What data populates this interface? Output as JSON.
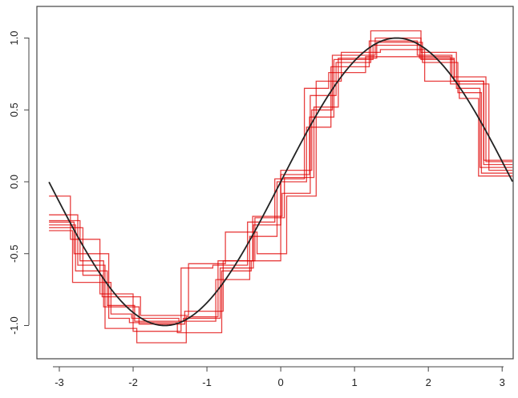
{
  "chart_data": {
    "type": "line",
    "title": "",
    "xlabel": "",
    "ylabel": "",
    "xlim": [
      -3.14,
      3.14
    ],
    "ylim": [
      -1.15,
      1.08
    ],
    "grid": false,
    "x_ticks": [
      -3,
      -2,
      -1,
      0,
      1,
      2,
      3
    ],
    "y_ticks": [
      -1.0,
      -0.5,
      0.0,
      0.5,
      1.0
    ],
    "x_tick_labels": [
      "-3",
      "-2",
      "-1",
      "0",
      "1",
      "2",
      "3"
    ],
    "y_tick_labels": [
      "-1.0",
      "-0.5",
      "0.0",
      "0.5",
      "1.0"
    ],
    "colors": {
      "curve": "#222222",
      "steps": "#e00000",
      "axis": "#444444"
    },
    "curve": {
      "function": "sin(x)",
      "x_range": [
        -3.14,
        3.14
      ]
    },
    "step_series": [
      {
        "breaks": [
          -3.14,
          -2.78,
          -2.35,
          -1.98,
          -1.32,
          -0.82,
          -0.37,
          0.0,
          0.39,
          0.72,
          1.25,
          1.88,
          2.35,
          2.75,
          3.14
        ],
        "values": [
          -0.3,
          -0.62,
          -0.86,
          -0.97,
          -0.95,
          -0.6,
          -0.3,
          0.05,
          0.45,
          0.85,
          0.95,
          0.86,
          0.7,
          0.12
        ]
      },
      {
        "breaks": [
          -3.14,
          -2.72,
          -2.4,
          -1.92,
          -1.3,
          -0.78,
          -0.35,
          0.05,
          0.45,
          0.78,
          1.3,
          1.92,
          2.4,
          2.72,
          3.14
        ],
        "values": [
          -0.27,
          -0.55,
          -0.87,
          -0.99,
          -0.9,
          -0.55,
          -0.25,
          0.03,
          0.52,
          0.86,
          0.97,
          0.83,
          0.62,
          0.06
        ]
      },
      {
        "breaks": [
          -3.14,
          -2.82,
          -2.3,
          -2.02,
          -1.38,
          -0.88,
          -0.42,
          -0.05,
          0.35,
          0.68,
          1.2,
          1.85,
          2.32,
          2.78,
          3.14
        ],
        "values": [
          -0.34,
          -0.7,
          -0.92,
          -0.95,
          -0.97,
          -0.68,
          -0.38,
          0.0,
          0.38,
          0.8,
          0.98,
          0.88,
          0.73,
          0.14
        ]
      },
      {
        "breaks": [
          -3.14,
          -2.75,
          -2.38,
          -1.95,
          -1.28,
          -0.85,
          -0.38,
          0.02,
          0.4,
          0.75,
          1.22,
          1.9,
          2.38,
          2.7,
          3.14
        ],
        "values": [
          -0.23,
          -0.58,
          -1.02,
          -1.12,
          -0.94,
          -0.55,
          -0.24,
          -0.08,
          0.6,
          0.83,
          1.05,
          0.9,
          0.65,
          0.1
        ]
      },
      {
        "breaks": [
          -3.14,
          -2.68,
          -2.42,
          -1.9,
          -1.25,
          -0.75,
          -0.32,
          0.08,
          0.48,
          0.82,
          1.35,
          1.95,
          2.42,
          2.68,
          3.14
        ],
        "values": [
          -0.32,
          -0.65,
          -0.8,
          -0.93,
          -0.57,
          -0.35,
          -0.5,
          -0.1,
          0.7,
          0.9,
          0.92,
          0.7,
          0.58,
          0.04
        ]
      },
      {
        "breaks": [
          -3.14,
          -2.85,
          -2.45,
          -2.0,
          -1.35,
          -0.92,
          -0.45,
          -0.08,
          0.32,
          0.65,
          1.15,
          1.82,
          2.3,
          2.82,
          3.14
        ],
        "values": [
          -0.1,
          -0.4,
          -0.78,
          -1.04,
          -0.6,
          -0.58,
          -0.28,
          0.02,
          0.65,
          0.76,
          0.87,
          0.87,
          0.68,
          0.08
        ]
      },
      {
        "breaks": [
          -3.14,
          -2.8,
          -2.33,
          -2.05,
          -1.4,
          -0.8,
          -0.4,
          0.0,
          0.42,
          0.7,
          1.28,
          1.9,
          2.35,
          2.75,
          3.14
        ],
        "values": [
          -0.28,
          -0.5,
          -0.95,
          -0.98,
          -1.05,
          -0.62,
          -0.55,
          0.08,
          0.5,
          0.88,
          1.0,
          0.85,
          0.7,
          0.15
        ]
      }
    ]
  }
}
